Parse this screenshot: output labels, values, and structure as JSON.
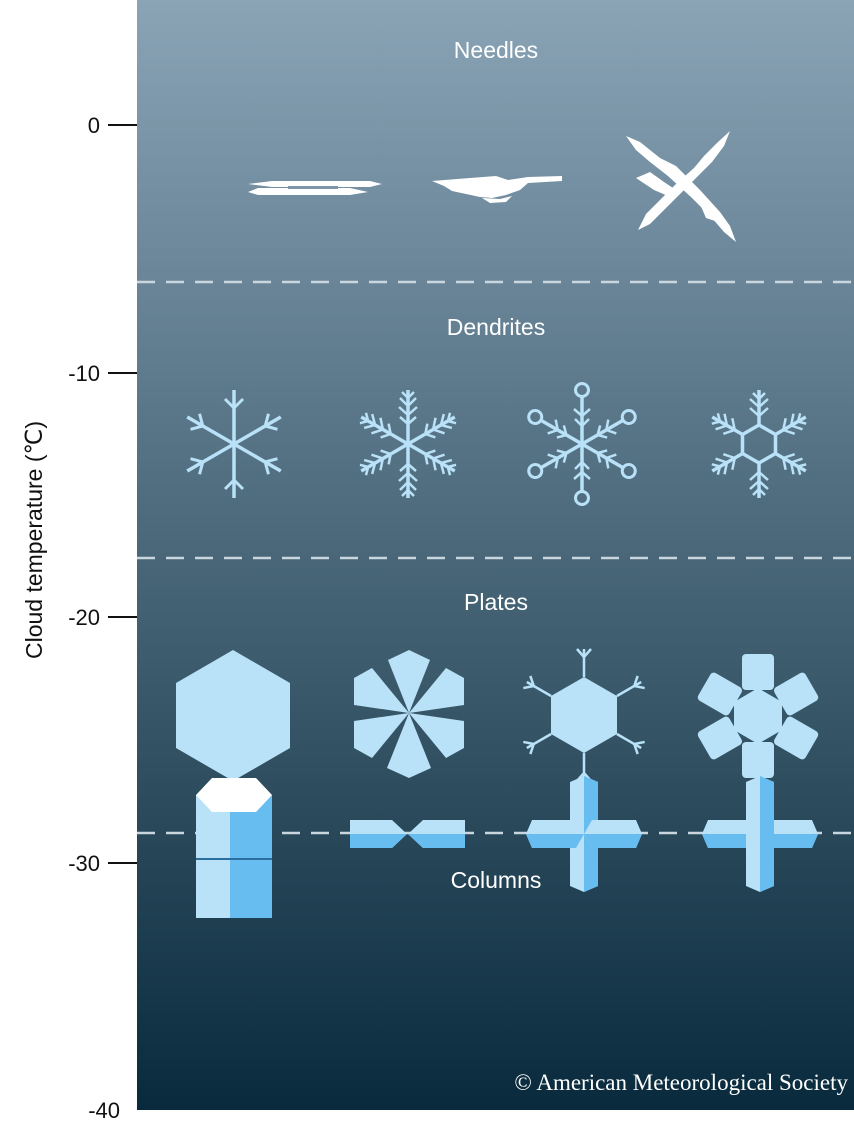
{
  "axis": {
    "title": "Cloud temperature (℃)",
    "ticks": [
      "0",
      "-10",
      "-20",
      "-30",
      "-40"
    ]
  },
  "bands": [
    {
      "label": "Needles",
      "crystals": [
        "needle-crystal",
        "needle-crystal",
        "crossed-needle-crystal"
      ]
    },
    {
      "label": "Dendrites",
      "crystals": [
        "dendrite-crystal",
        "dendrite-crystal",
        "dendrite-crystal",
        "dendrite-crystal"
      ]
    },
    {
      "label": "Plates",
      "crystals": [
        "hexagonal-plate-crystal",
        "sectored-plate-crystal",
        "stellar-plate-crystal",
        "lobed-plate-crystal"
      ]
    },
    {
      "label": "Columns",
      "crystals": [
        "hexagonal-column-crystal",
        "bullet-pair-crystal",
        "bullet-rosette-crystal",
        "cross-column-crystal"
      ]
    }
  ],
  "copyright": "© American Meteorological Society",
  "colors": {
    "gradient_top": "#8aa4b6",
    "gradient_bottom": "#082a3c",
    "crystal_fill": "#b9e1f7",
    "column_side": "#67bdf0",
    "needle": "#ffffff",
    "divider": "#c9d6de"
  }
}
